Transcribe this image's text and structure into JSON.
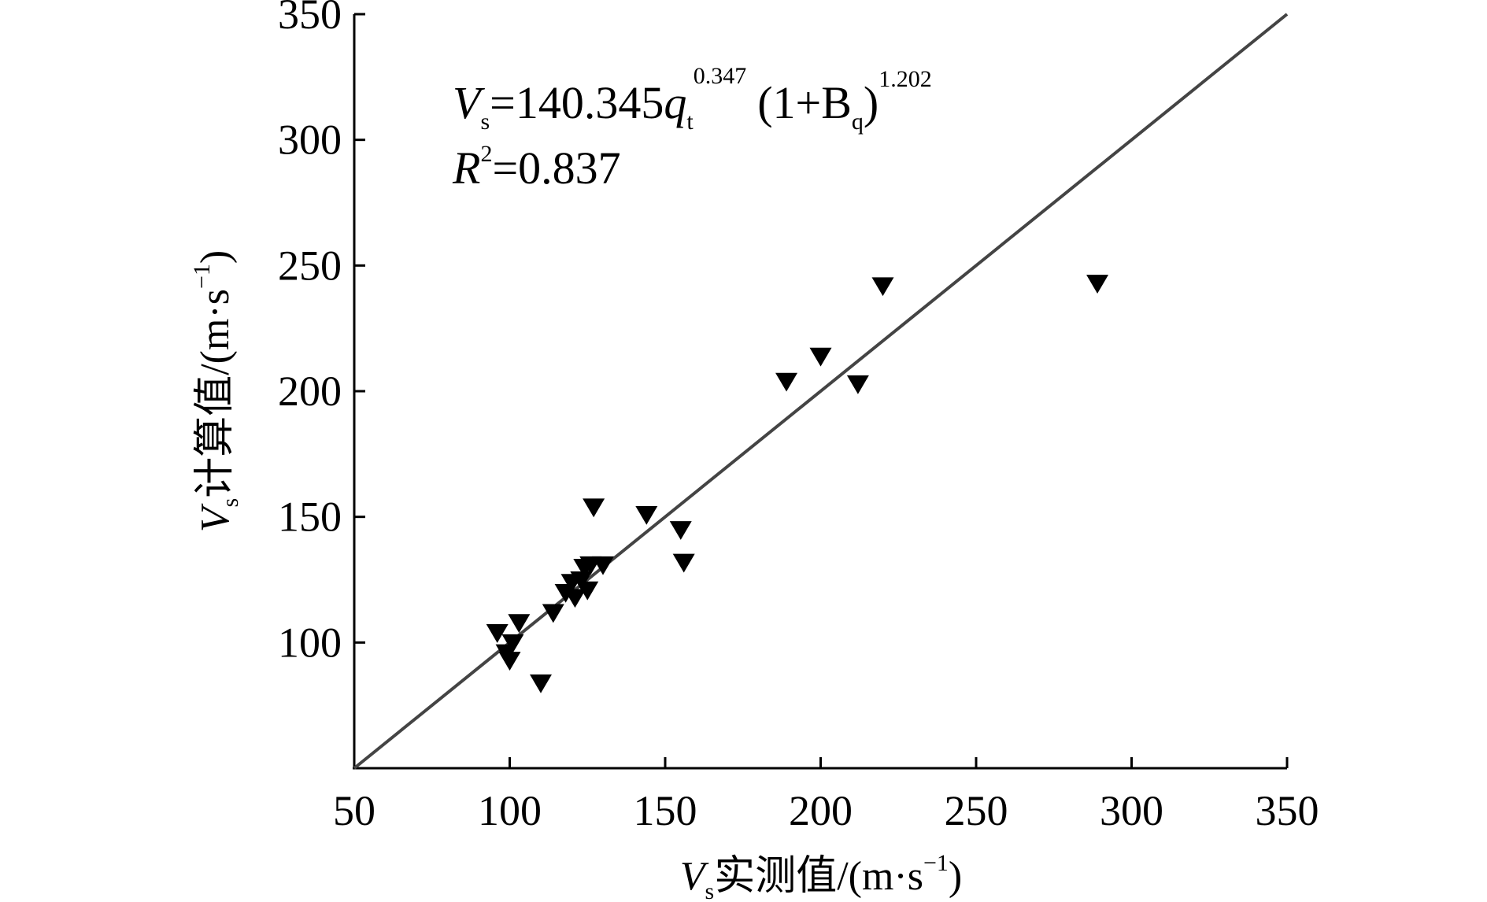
{
  "chart_data": {
    "type": "scatter",
    "xlabel": {
      "symbol": "V",
      "subscript": "s",
      "text": "实测值/(m·s",
      "sup": "−1",
      "close": ")"
    },
    "ylabel": {
      "symbol": "V",
      "subscript": "s",
      "text": "计算值/(m·s",
      "sup": "−1",
      "close": ")"
    },
    "xlim": [
      50,
      350
    ],
    "ylim": [
      50,
      350
    ],
    "xticks": [
      "50",
      "100",
      "150",
      "200",
      "250",
      "300",
      "350"
    ],
    "yticks": [
      "100",
      "150",
      "200",
      "250",
      "300",
      "350"
    ],
    "marker": "triangle-down",
    "marker_color": "#000000",
    "line_color": "#444444",
    "reference_line": {
      "x": [
        50,
        350
      ],
      "y": [
        50,
        350
      ]
    },
    "annotation": {
      "eq_V": "V",
      "eq_s": "s",
      "eq_mid": "=140.345",
      "eq_q": "q",
      "eq_t": "t",
      "eq_exp1": "0.347",
      "eq_paren": "(1+B",
      "eq_qsub": "q",
      "eq_close": ")",
      "eq_exp2": "1.202",
      "r2_R": "R",
      "r2_sup": "2",
      "r2_val": "=0.837"
    },
    "points": [
      {
        "x": 96,
        "y": 104
      },
      {
        "x": 99,
        "y": 96
      },
      {
        "x": 100,
        "y": 93
      },
      {
        "x": 101,
        "y": 100
      },
      {
        "x": 103,
        "y": 108
      },
      {
        "x": 110,
        "y": 84
      },
      {
        "x": 114,
        "y": 112
      },
      {
        "x": 118,
        "y": 120
      },
      {
        "x": 120,
        "y": 124
      },
      {
        "x": 121,
        "y": 118
      },
      {
        "x": 123,
        "y": 125
      },
      {
        "x": 124,
        "y": 130
      },
      {
        "x": 125,
        "y": 121
      },
      {
        "x": 126,
        "y": 131
      },
      {
        "x": 127,
        "y": 154
      },
      {
        "x": 130,
        "y": 131
      },
      {
        "x": 144,
        "y": 151
      },
      {
        "x": 155,
        "y": 145
      },
      {
        "x": 156,
        "y": 132
      },
      {
        "x": 189,
        "y": 204
      },
      {
        "x": 200,
        "y": 214
      },
      {
        "x": 212,
        "y": 203
      },
      {
        "x": 220,
        "y": 242
      },
      {
        "x": 289,
        "y": 243
      }
    ]
  }
}
